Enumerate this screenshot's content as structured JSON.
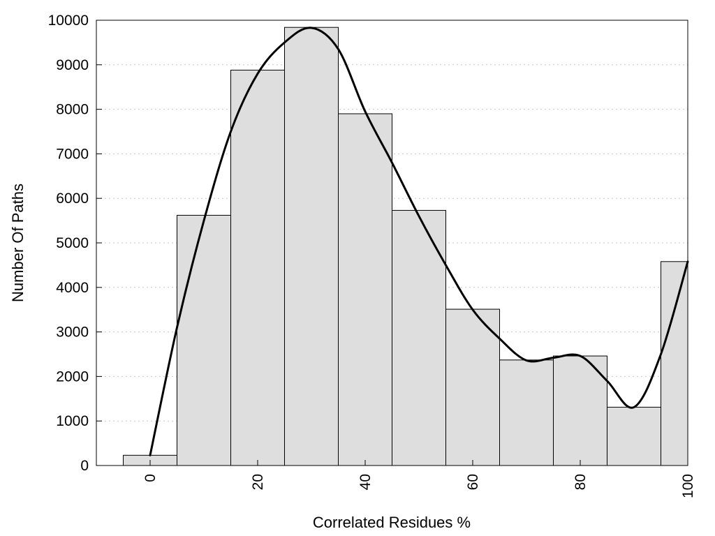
{
  "chart_data": {
    "type": "bar",
    "title": "",
    "xlabel": "Correlated Residues %",
    "ylabel": "Number Of Paths",
    "bin_width": 10,
    "x": [
      0,
      10,
      20,
      30,
      40,
      50,
      60,
      70,
      80,
      90,
      100
    ],
    "values": [
      230,
      5620,
      8880,
      9840,
      7900,
      5730,
      3510,
      2370,
      2460,
      1310,
      4580
    ],
    "xlim": [
      -10,
      100
    ],
    "ylim": [
      0,
      10000
    ],
    "xticks": [
      0,
      20,
      40,
      60,
      80,
      100
    ],
    "yticks": [
      0,
      1000,
      2000,
      3000,
      4000,
      5000,
      6000,
      7000,
      8000,
      9000,
      10000
    ],
    "grid": "horizontal dotted",
    "legend": "none",
    "bar_color": "#dedede",
    "bar_edge_color": "#000000",
    "series": [
      {
        "type": "line",
        "x": [
          0,
          5,
          10,
          15,
          20,
          25,
          30,
          35,
          40,
          45,
          50,
          55,
          60,
          65,
          70,
          75,
          80,
          85,
          90,
          95,
          100
        ],
        "values": [
          230,
          3100,
          5500,
          7500,
          8800,
          9500,
          9830,
          9350,
          7950,
          6800,
          5600,
          4500,
          3500,
          2850,
          2360,
          2420,
          2460,
          1900,
          1310,
          2500,
          4580
        ]
      }
    ]
  }
}
